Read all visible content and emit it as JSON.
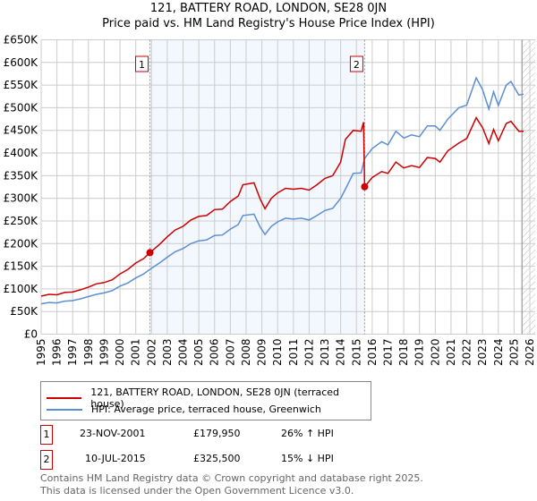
{
  "chart_data": {
    "type": "line",
    "title": "121, BATTERY ROAD, LONDON, SE28 0JN",
    "subtitle": "Price paid vs. HM Land Registry's House Price Index (HPI)",
    "xlim": [
      1995,
      2026
    ],
    "ylim": [
      0,
      650000
    ],
    "y_ticks": [
      {
        "v": 0,
        "label": "£0"
      },
      {
        "v": 50000,
        "label": "£50K"
      },
      {
        "v": 100000,
        "label": "£100K"
      },
      {
        "v": 150000,
        "label": "£150K"
      },
      {
        "v": 200000,
        "label": "£200K"
      },
      {
        "v": 250000,
        "label": "£250K"
      },
      {
        "v": 300000,
        "label": "£300K"
      },
      {
        "v": 350000,
        "label": "£350K"
      },
      {
        "v": 400000,
        "label": "£400K"
      },
      {
        "v": 450000,
        "label": "£450K"
      },
      {
        "v": 500000,
        "label": "£500K"
      },
      {
        "v": 550000,
        "label": "£550K"
      },
      {
        "v": 600000,
        "label": "£600K"
      },
      {
        "v": 650000,
        "label": "£650K"
      }
    ],
    "x_ticks": [
      "1995",
      "1996",
      "1997",
      "1998",
      "1999",
      "2000",
      "2001",
      "2002",
      "2003",
      "2004",
      "2005",
      "2006",
      "2007",
      "2008",
      "2009",
      "2010",
      "2011",
      "2012",
      "2013",
      "2014",
      "2015",
      "2016",
      "2017",
      "2018",
      "2019",
      "2020",
      "2021",
      "2022",
      "2023",
      "2024",
      "2025",
      "2026"
    ],
    "grid": true,
    "shaded_range": [
      2001.9,
      2015.52
    ],
    "forecast_hatch_from": 2025.5,
    "series": [
      {
        "name": "121, BATTERY ROAD, LONDON, SE28 0JN (terraced house)",
        "color": "#cc0000",
        "x": [
          1995,
          1995.5,
          1996,
          1996.5,
          1997,
          1997.5,
          1998,
          1998.5,
          1999,
          1999.5,
          2000,
          2000.5,
          2001,
          2001.5,
          2001.9,
          2002.5,
          2003,
          2003.5,
          2004,
          2004.5,
          2005,
          2005.5,
          2006,
          2006.5,
          2007,
          2007.5,
          2007.8,
          2008.5,
          2008.9,
          2009.2,
          2009.6,
          2010,
          2010.5,
          2011,
          2011.5,
          2012,
          2012.5,
          2013,
          2013.5,
          2014,
          2014.3,
          2014.8,
          2015.3,
          2015.45,
          2015.52,
          2016,
          2016.6,
          2017,
          2017.5,
          2018,
          2018.5,
          2019,
          2019.5,
          2020,
          2020.3,
          2020.8,
          2021.5,
          2022,
          2022.6,
          2023,
          2023.4,
          2023.7,
          2024,
          2024.5,
          2024.8,
          2025.3,
          2025.6
        ],
        "y": [
          84000,
          88000,
          87000,
          92000,
          93000,
          98000,
          104000,
          111000,
          114000,
          120000,
          133000,
          143000,
          157000,
          167000,
          179950,
          198000,
          215000,
          230000,
          238000,
          252000,
          260000,
          262000,
          275000,
          276000,
          293000,
          305000,
          330000,
          334000,
          298000,
          277000,
          300000,
          312000,
          322000,
          320000,
          322000,
          318000,
          330000,
          344000,
          350000,
          380000,
          430000,
          450000,
          448000,
          468000,
          325500,
          346000,
          359000,
          355000,
          380000,
          367000,
          372000,
          368000,
          390000,
          388000,
          380000,
          405000,
          422000,
          432000,
          478000,
          456000,
          421000,
          452000,
          427000,
          465000,
          470000,
          448000,
          448000
        ]
      },
      {
        "name": "HPI: Average price, terraced house, Greenwich",
        "color": "#5b8fd4",
        "x": [
          1995,
          1995.5,
          1996,
          1996.5,
          1997,
          1997.5,
          1998,
          1998.5,
          1999,
          1999.5,
          2000,
          2000.5,
          2001,
          2001.5,
          2001.9,
          2002.5,
          2003,
          2003.5,
          2004,
          2004.5,
          2005,
          2005.5,
          2006,
          2006.5,
          2007,
          2007.5,
          2007.8,
          2008.5,
          2008.9,
          2009.2,
          2009.6,
          2010,
          2010.5,
          2011,
          2011.5,
          2012,
          2012.5,
          2013,
          2013.5,
          2014,
          2014.3,
          2014.8,
          2015.3,
          2015.52,
          2016,
          2016.6,
          2017,
          2017.5,
          2018,
          2018.5,
          2019,
          2019.5,
          2020,
          2020.3,
          2020.8,
          2021.5,
          2022,
          2022.6,
          2023,
          2023.4,
          2023.7,
          2024,
          2024.5,
          2024.8,
          2025.3,
          2025.6
        ],
        "y": [
          67000,
          70000,
          69000,
          73000,
          74000,
          78000,
          83000,
          88000,
          91000,
          96000,
          106000,
          113000,
          124000,
          133000,
          143000,
          157000,
          170000,
          182000,
          189000,
          200000,
          206000,
          208000,
          218000,
          219000,
          232000,
          242000,
          262000,
          265000,
          236000,
          220000,
          238000,
          248000,
          256000,
          254000,
          256000,
          252000,
          262000,
          273000,
          278000,
          300000,
          320000,
          355000,
          356000,
          388000,
          410000,
          425000,
          418000,
          448000,
          433000,
          440000,
          436000,
          460000,
          460000,
          450000,
          475000,
          500000,
          506000,
          566000,
          540000,
          497000,
          535000,
          505000,
          550000,
          558000,
          528000,
          530000
        ]
      }
    ],
    "sales": [
      {
        "id": "1",
        "x": 2001.9,
        "y": 179950
      },
      {
        "id": "2",
        "x": 2015.52,
        "y": 325500
      }
    ]
  },
  "legend": {
    "red": "121, BATTERY ROAD, LONDON, SE28 0JN (terraced house)",
    "blue": "HPI: Average price, terraced house, Greenwich"
  },
  "transactions": [
    {
      "id": "1",
      "date": "23-NOV-2001",
      "price": "£179,950",
      "hpi": "26% ↑ HPI"
    },
    {
      "id": "2",
      "date": "10-JUL-2015",
      "price": "£325,500",
      "hpi": "15% ↓ HPI"
    }
  ],
  "footer": {
    "line1": "Contains HM Land Registry data © Crown copyright and database right 2025.",
    "line2": "This data is licensed under the Open Government Licence v3.0."
  }
}
